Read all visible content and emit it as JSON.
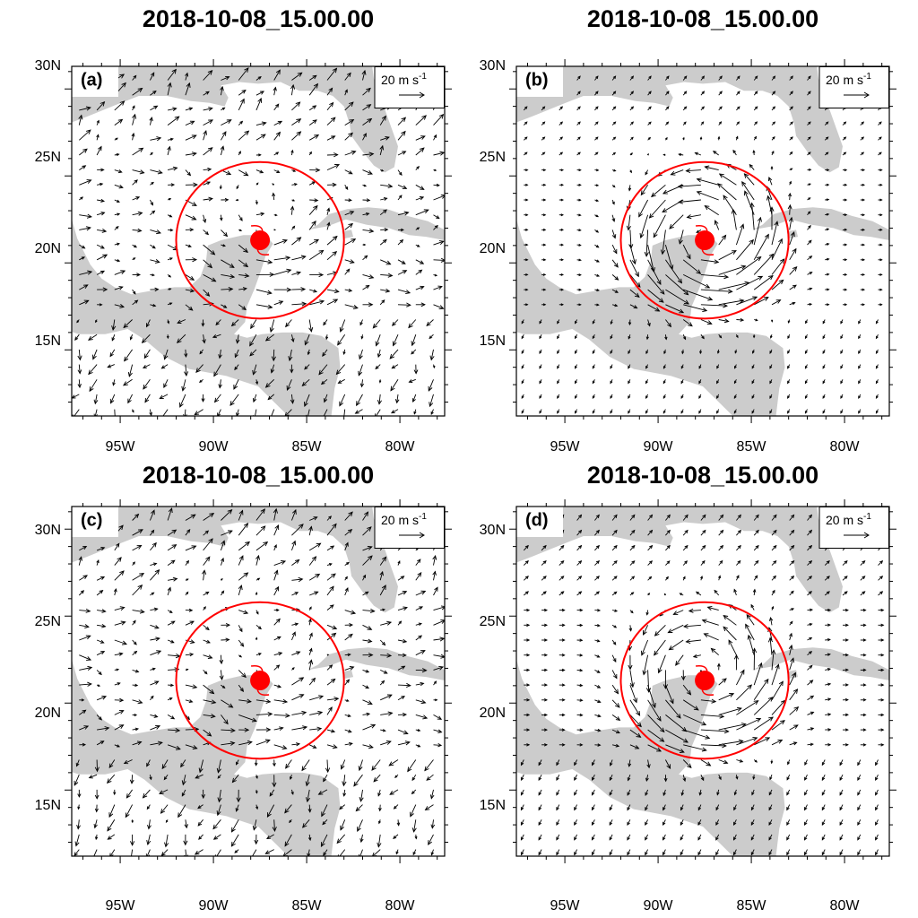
{
  "figure": {
    "panels": [
      {
        "id": "a",
        "title": "2018-10-08_15.00.00",
        "label": "(a)"
      },
      {
        "id": "b",
        "title": "2018-10-08_15.00.00",
        "label": "(b)"
      },
      {
        "id": "c",
        "title": "2018-10-08_15.00.00",
        "label": "(c)"
      },
      {
        "id": "d",
        "title": "2018-10-08_15.00.00",
        "label": "(d)"
      }
    ],
    "lat_ticks": [
      "30N",
      "25N",
      "20N",
      "15N"
    ],
    "lon_ticks": [
      "95W",
      "90W",
      "85W",
      "80W"
    ],
    "reference_vector": {
      "magnitude": "20",
      "unit": "m s",
      "exponent": "-1"
    },
    "map_extent": {
      "lon": [
        -97.6,
        -77.6
      ],
      "lat": [
        11.2,
        31.3
      ]
    },
    "storm_center": {
      "lon": -87.5,
      "lat": 21.3
    },
    "analysis_circle_radius_deg": 4.5,
    "colors": {
      "land": "#cccccc",
      "ocean": "#ffffff",
      "storm": "#ff0000",
      "vectors": "#000000"
    }
  }
}
